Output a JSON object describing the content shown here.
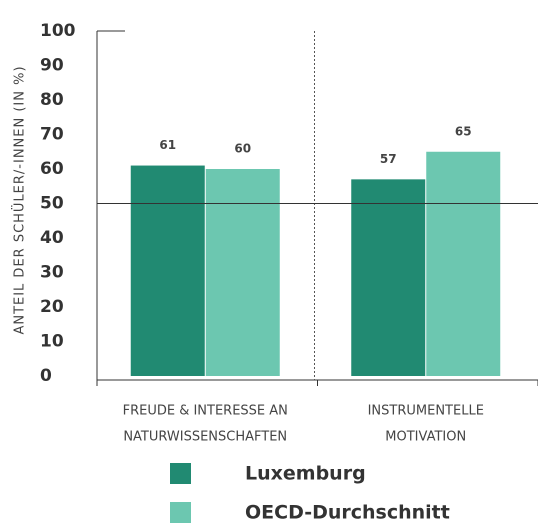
{
  "chart_data": {
    "type": "bar",
    "ylabel": "ANTEIL DER SCHÜLER/-INNEN (IN %)",
    "categories": [
      [
        "FREUDE & INTERESSE AN",
        "NATURWISSENSCHAFTEN"
      ],
      [
        "INSTRUMENTELLE",
        "MOTIVATION"
      ]
    ],
    "series": [
      {
        "name": "Luxemburg",
        "color": "#218a72",
        "values": [
          61,
          57
        ]
      },
      {
        "name": "OECD-Durchschnitt",
        "color": "#6cc7b0",
        "values": [
          60,
          65
        ]
      }
    ],
    "ylim": [
      0,
      100
    ],
    "yticks": [
      0,
      10,
      20,
      30,
      40,
      50,
      60,
      70,
      80,
      90,
      100
    ],
    "hline": 50,
    "legend": "bottom"
  }
}
